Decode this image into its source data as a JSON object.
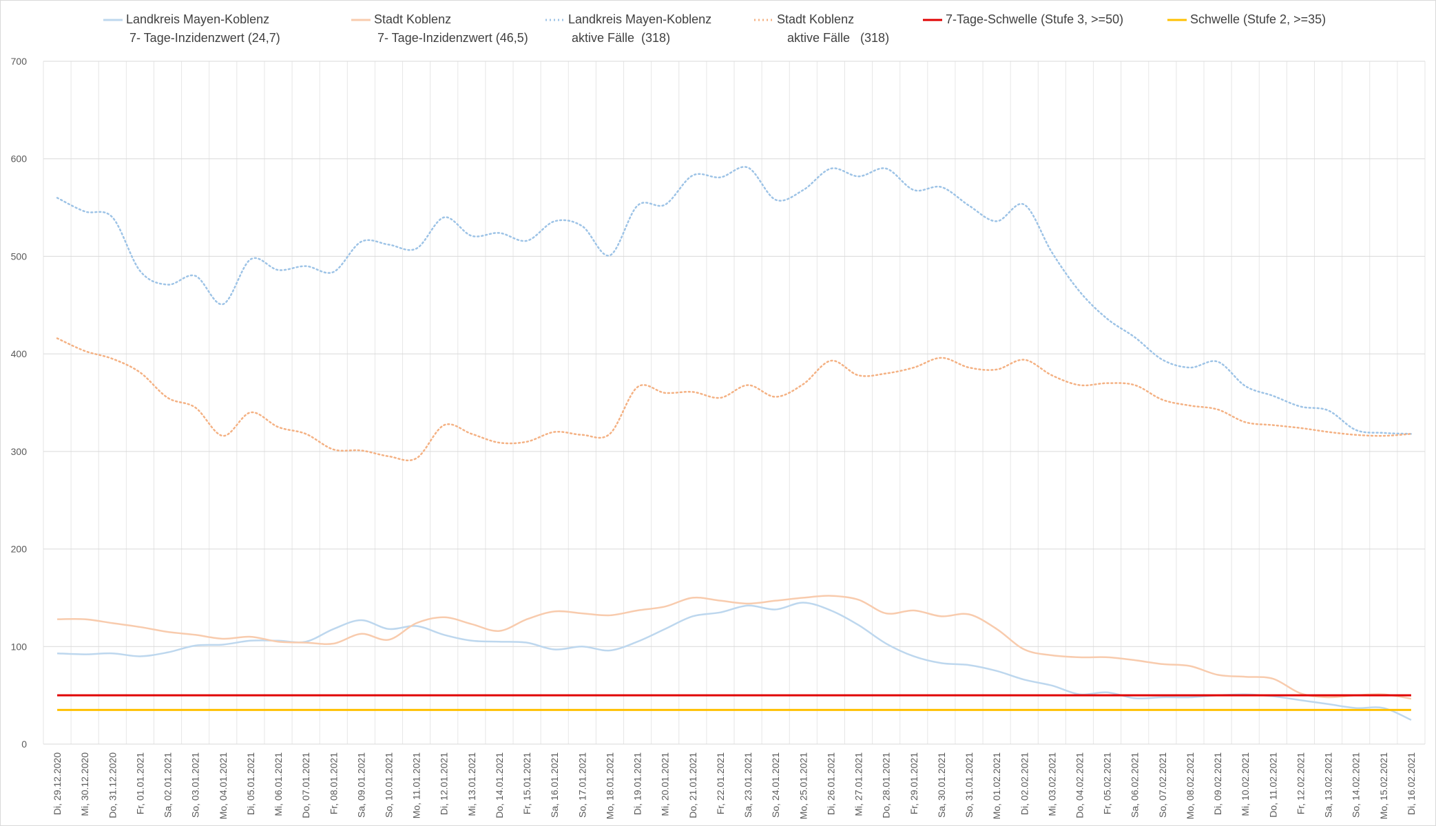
{
  "chart_data": {
    "type": "line",
    "categories": [
      "Di, 29.12.2020",
      "Mi, 30.12.2020",
      "Do, 31.12.2020",
      "Fr, 01.01.2021",
      "Sa, 02.01.2021",
      "So, 03.01.2021",
      "Mo, 04.01.2021",
      "Di, 05.01.2021",
      "Mi, 06.01.2021",
      "Do, 07.01.2021",
      "Fr, 08.01.2021",
      "Sa, 09.01.2021",
      "So, 10.01.2021",
      "Mo, 11.01.2021",
      "Di, 12.01.2021",
      "Mi, 13.01.2021",
      "Do, 14.01.2021",
      "Fr, 15.01.2021",
      "Sa, 16.01.2021",
      "So, 17.01.2021",
      "Mo, 18.01.2021",
      "Di, 19.01.2021",
      "Mi, 20.01.2021",
      "Do, 21.01.2021",
      "Fr, 22.01.2021",
      "Sa, 23.01.2021",
      "So, 24.01.2021",
      "Mo, 25.01.2021",
      "Di, 26.01.2021",
      "Mi, 27.01.2021",
      "Do, 28.01.2021",
      "Fr, 29.01.2021",
      "Sa, 30.01.2021",
      "So, 31.01.2021",
      "Mo, 01.02.2021",
      "Di, 02.02.2021",
      "Mi, 03.02.2021",
      "Do, 04.02.2021",
      "Fr, 05.02.2021",
      "Sa, 06.02.2021",
      "So, 07.02.2021",
      "Mo, 08.02.2021",
      "Di, 09.02.2021",
      "Mi, 10.02.2021",
      "Do, 11.02.2021",
      "Fr, 12.02.2021",
      "Sa, 13.02.2021",
      "So, 14.02.2021",
      "Mo, 15.02.2021",
      "Di, 16.02.2021"
    ],
    "series": [
      {
        "name": "Landkreis Mayen-Koblenz\n 7- Tage-Inzidenzwert (24,7)",
        "color": "#bdd7ee",
        "line_style": "solid",
        "values": [
          93,
          92,
          93,
          90,
          94,
          101,
          102,
          106,
          106,
          105,
          118,
          127,
          118,
          121,
          112,
          106,
          105,
          104,
          97,
          100,
          96,
          105,
          118,
          131,
          135,
          142,
          138,
          145,
          137,
          122,
          103,
          90,
          83,
          81,
          75,
          66,
          60,
          51,
          53,
          47,
          48,
          48,
          50,
          51,
          49,
          45,
          41,
          37,
          37,
          24.7
        ]
      },
      {
        "name": "Stadt Koblenz\n 7- Tage-Inzidenzwert (46,5)",
        "color": "#f8cbad",
        "line_style": "solid",
        "values": [
          128,
          128,
          124,
          120,
          115,
          112,
          108,
          110,
          105,
          104,
          103,
          113,
          107,
          124,
          130,
          123,
          116,
          128,
          136,
          134,
          132,
          137,
          141,
          150,
          147,
          144,
          147,
          150,
          152,
          148,
          134,
          137,
          131,
          133,
          118,
          97,
          91,
          89,
          89,
          86,
          82,
          80,
          71,
          69,
          67,
          52,
          48,
          50,
          51,
          46.5
        ]
      },
      {
        "name": "Landkreis Mayen-Koblenz\n aktive Fälle  (318)",
        "color": "#9dc3e6",
        "line_style": "dotted",
        "values": [
          560,
          546,
          540,
          485,
          471,
          480,
          451,
          497,
          486,
          490,
          484,
          515,
          512,
          508,
          540,
          521,
          524,
          516,
          536,
          531,
          501,
          552,
          553,
          583,
          581,
          591,
          558,
          568,
          590,
          582,
          590,
          568,
          571,
          552,
          536,
          553,
          504,
          464,
          436,
          417,
          394,
          386,
          392,
          367,
          357,
          346,
          342,
          322,
          319,
          318
        ]
      },
      {
        "name": "Stadt Koblenz\n   aktive Fälle   (318)",
        "color": "#f4b183",
        "line_style": "dotted",
        "values": [
          416,
          403,
          395,
          381,
          355,
          345,
          316,
          340,
          325,
          318,
          302,
          301,
          295,
          293,
          327,
          318,
          309,
          310,
          320,
          317,
          318,
          366,
          360,
          361,
          355,
          368,
          356,
          369,
          393,
          378,
          380,
          386,
          396,
          386,
          384,
          394,
          378,
          368,
          370,
          368,
          353,
          347,
          343,
          330,
          327,
          324,
          320,
          317,
          316,
          318
        ]
      },
      {
        "name": "7-Tage-Schwelle (Stufe 3, >=50)",
        "color": "#e00000",
        "line_style": "solid",
        "values": [
          50,
          50,
          50,
          50,
          50,
          50,
          50,
          50,
          50,
          50,
          50,
          50,
          50,
          50,
          50,
          50,
          50,
          50,
          50,
          50,
          50,
          50,
          50,
          50,
          50,
          50,
          50,
          50,
          50,
          50,
          50,
          50,
          50,
          50,
          50,
          50,
          50,
          50,
          50,
          50,
          50,
          50,
          50,
          50,
          50,
          50,
          50,
          50,
          50,
          50
        ]
      },
      {
        "name": "Schwelle (Stufe 2, >=35)",
        "color": "#ffc000",
        "line_style": "solid",
        "values": [
          35,
          35,
          35,
          35,
          35,
          35,
          35,
          35,
          35,
          35,
          35,
          35,
          35,
          35,
          35,
          35,
          35,
          35,
          35,
          35,
          35,
          35,
          35,
          35,
          35,
          35,
          35,
          35,
          35,
          35,
          35,
          35,
          35,
          35,
          35,
          35,
          35,
          35,
          35,
          35,
          35,
          35,
          35,
          35,
          35,
          35,
          35,
          35,
          35,
          35
        ]
      }
    ],
    "ylim": [
      0,
      700
    ],
    "yticks": [
      0,
      100,
      200,
      300,
      400,
      500,
      600,
      700
    ],
    "grid": true,
    "legend": "top"
  }
}
